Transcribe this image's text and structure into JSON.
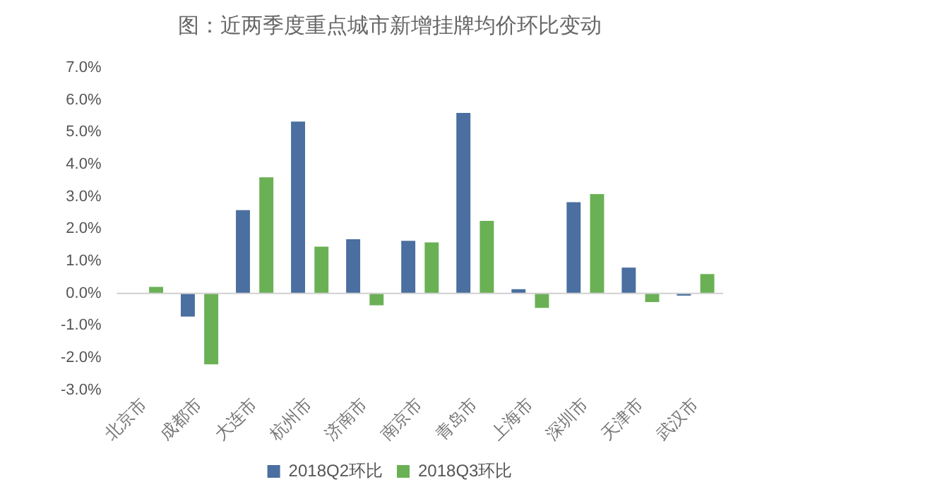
{
  "chart_data": {
    "type": "bar",
    "title": "图：近两季度重点城市新增挂牌均价环比变动",
    "categories": [
      "北京市",
      "成都市",
      "大连市",
      "杭州市",
      "济南市",
      "南京市",
      "青岛市",
      "上海市",
      "深圳市",
      "天津市",
      "武汉市"
    ],
    "series": [
      {
        "name": "2018Q2环比",
        "color": "#4a6fa0",
        "values": [
          0,
          -0.72,
          2.58,
          5.33,
          1.68,
          1.63,
          5.6,
          0.13,
          2.83,
          0.8,
          -0.07
        ]
      },
      {
        "name": "2018Q3环比",
        "color": "#6ab155",
        "values": [
          0.2,
          -2.2,
          3.6,
          1.45,
          -0.37,
          1.58,
          2.25,
          -0.45,
          3.08,
          -0.27,
          0.6
        ]
      }
    ],
    "ylim": [
      -3,
      7
    ],
    "yticks": [
      {
        "value": -3,
        "label": "-3.0%"
      },
      {
        "value": -2,
        "label": "-2.0%"
      },
      {
        "value": -1,
        "label": "-1.0%"
      },
      {
        "value": 0,
        "label": "0.0%"
      },
      {
        "value": 1,
        "label": "1.0%"
      },
      {
        "value": 2,
        "label": "2.0%"
      },
      {
        "value": 3,
        "label": "3.0%"
      },
      {
        "value": 4,
        "label": "4.0%"
      },
      {
        "value": 5,
        "label": "5.0%"
      },
      {
        "value": 6,
        "label": "6.0%"
      },
      {
        "value": 7,
        "label": "7.0%"
      }
    ],
    "legend": "bottom"
  }
}
